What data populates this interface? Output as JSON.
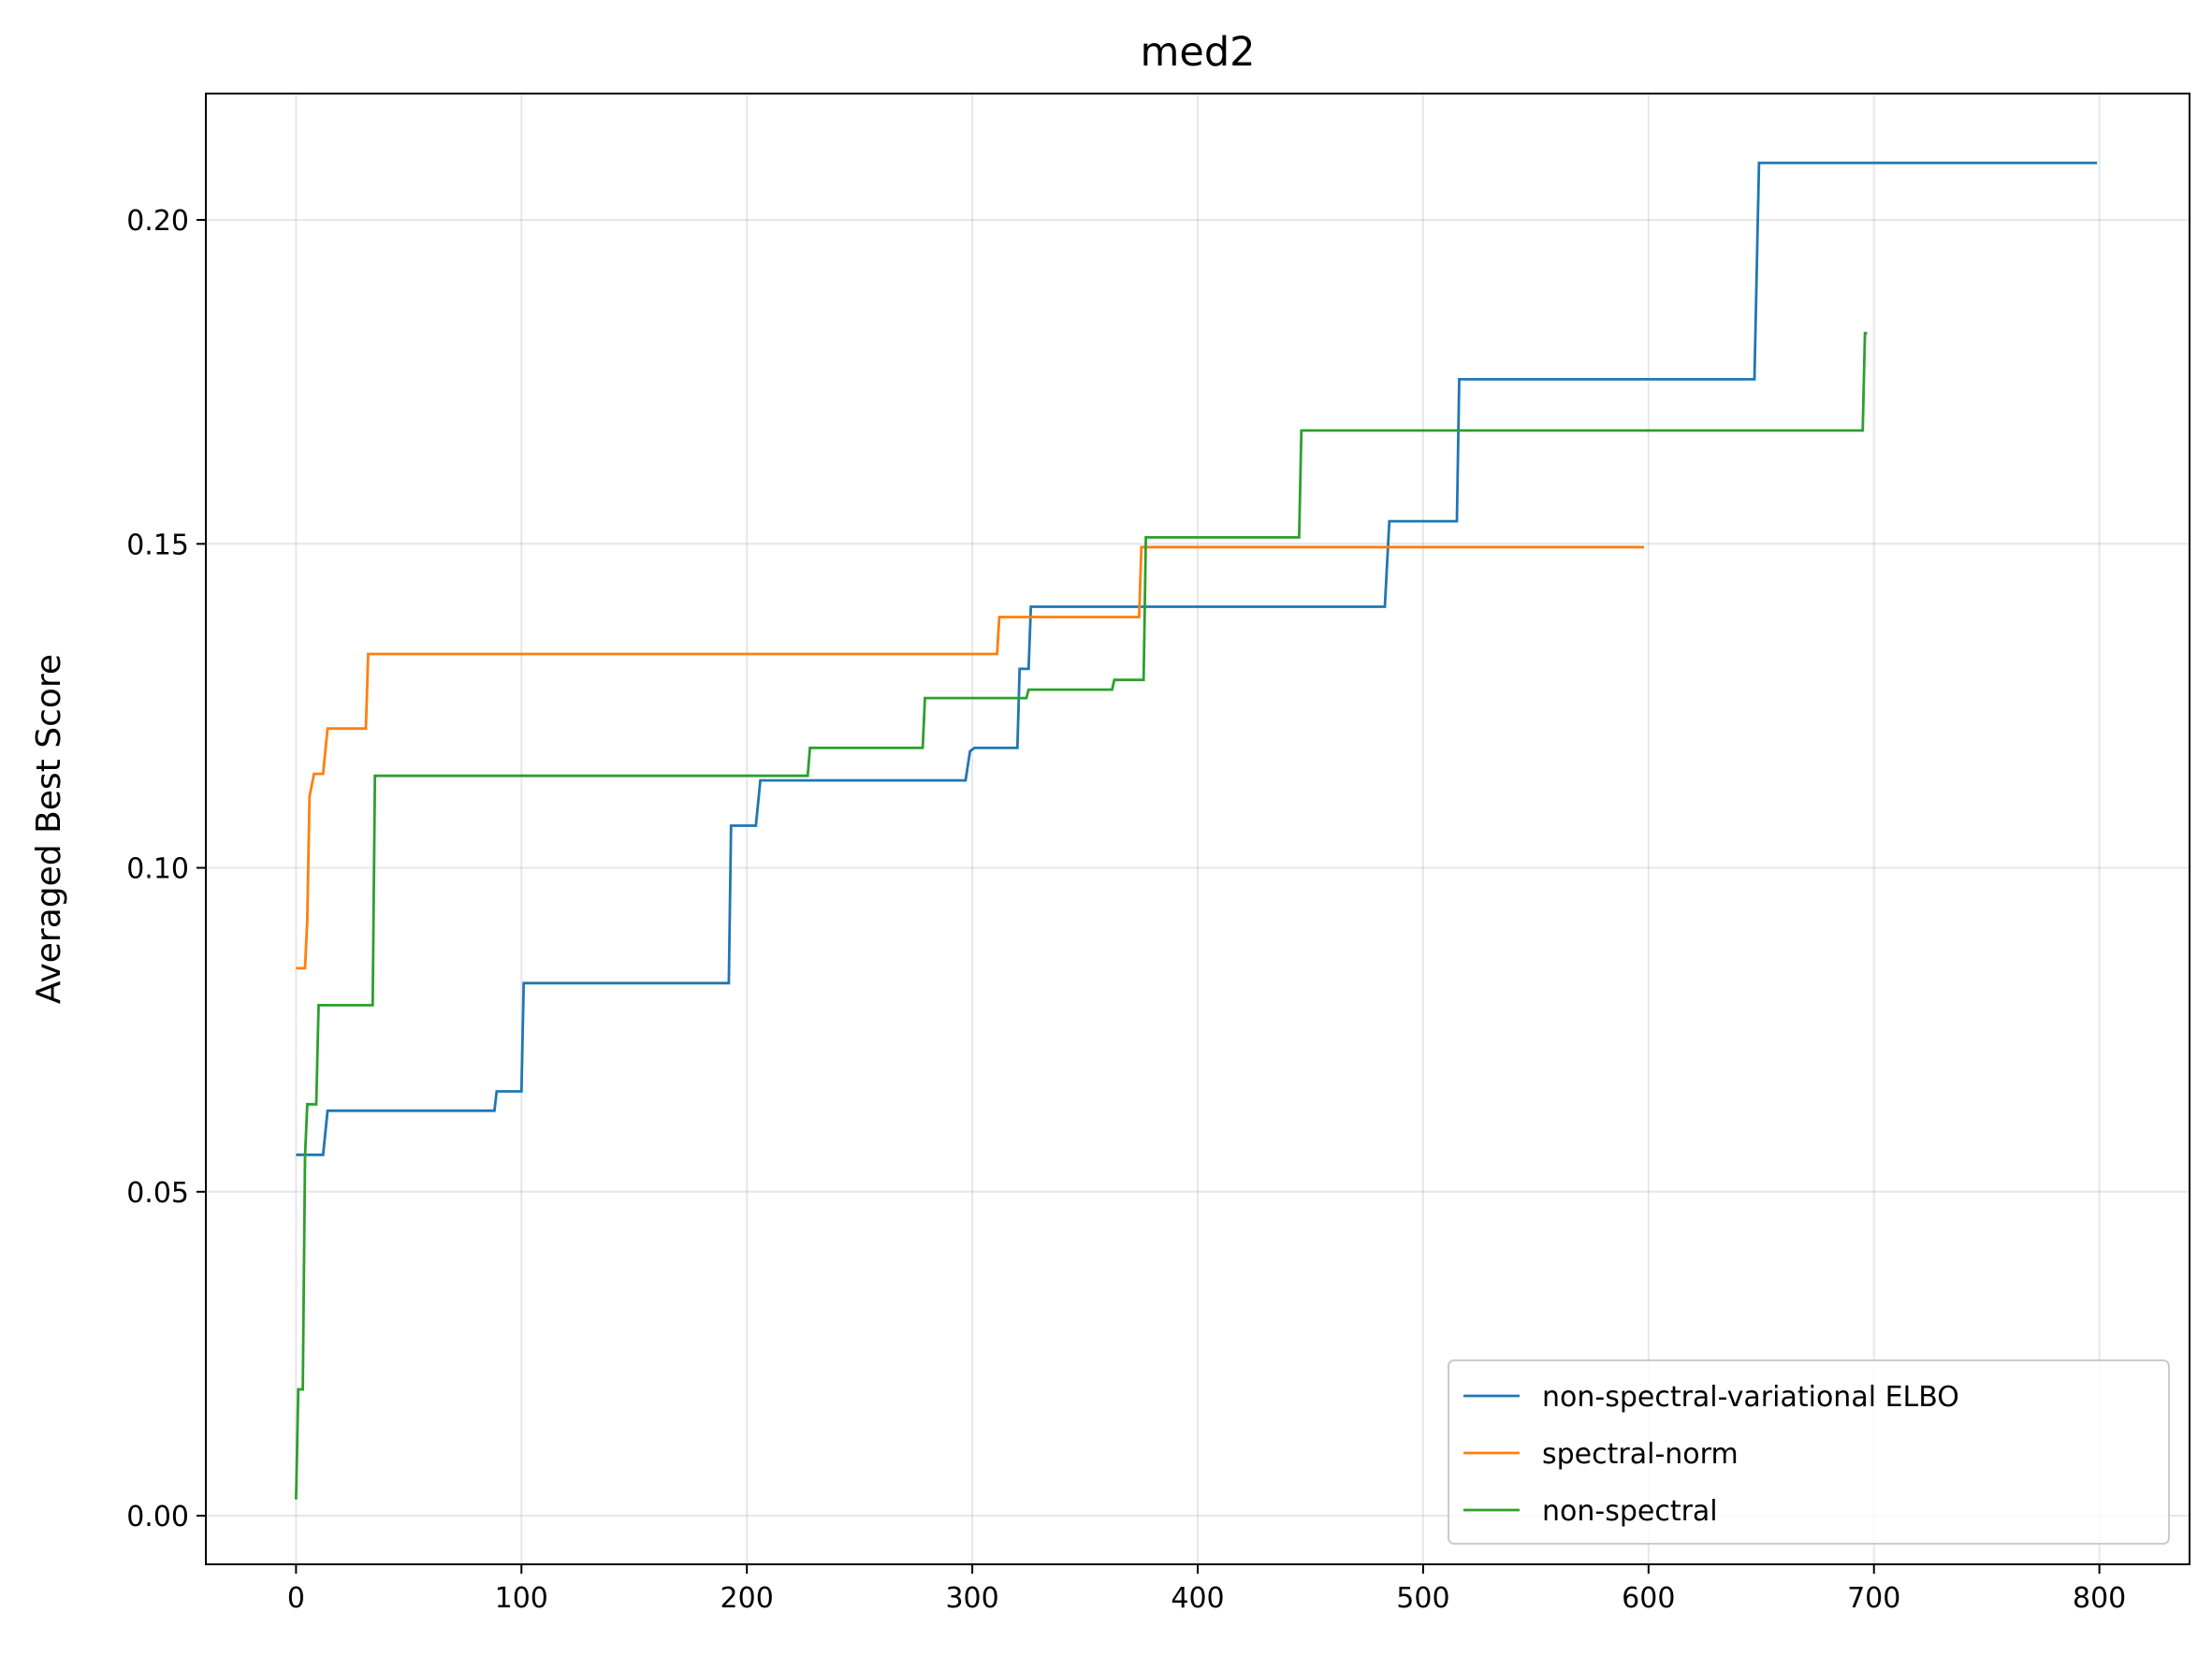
{
  "chart_data": {
    "type": "line",
    "title": "med2",
    "xlabel": "",
    "ylabel": "Averaged Best Score",
    "xlim": [
      -40,
      840
    ],
    "ylim": [
      -0.0075,
      0.2195
    ],
    "xticks": [
      0,
      100,
      200,
      300,
      400,
      500,
      600,
      700,
      800
    ],
    "xtick_labels": [
      "0",
      "100",
      "200",
      "300",
      "400",
      "500",
      "600",
      "700",
      "800"
    ],
    "yticks": [
      0.0,
      0.05,
      0.1,
      0.15,
      0.2
    ],
    "ytick_labels": [
      "0.00",
      "0.05",
      "0.10",
      "0.15",
      "0.20"
    ],
    "grid": true,
    "legend_position": "lower-right",
    "series": [
      {
        "name": "non-spectral-variational ELBO",
        "color": "#1f77b4",
        "x": [
          0,
          12,
          14,
          88,
          89,
          100,
          101,
          192,
          193,
          204,
          206,
          297,
          299,
          301,
          320,
          321,
          325,
          326,
          483,
          485,
          515,
          516,
          647,
          649,
          799
        ],
        "y": [
          0.0557,
          0.0557,
          0.0625,
          0.0625,
          0.0655,
          0.0655,
          0.0822,
          0.0822,
          0.1065,
          0.1065,
          0.1135,
          0.1135,
          0.118,
          0.1185,
          0.1185,
          0.1307,
          0.1307,
          0.1403,
          0.1403,
          0.1535,
          0.1535,
          0.1754,
          0.1754,
          0.2088,
          0.2088
        ]
      },
      {
        "name": "spectral-norm",
        "color": "#ff7f0e",
        "x": [
          0,
          4,
          5,
          6,
          8,
          12,
          14,
          31,
          32,
          311,
          312,
          374,
          375,
          598
        ],
        "y": [
          0.0845,
          0.0845,
          0.092,
          0.111,
          0.1145,
          0.1145,
          0.1215,
          0.1215,
          0.133,
          0.133,
          0.1387,
          0.1387,
          0.1495,
          0.1495
        ]
      },
      {
        "name": "non-spectral",
        "color": "#2ca02c",
        "x": [
          0,
          1,
          3,
          4,
          5,
          9,
          10,
          34,
          35,
          227,
          228,
          278,
          279,
          324,
          325,
          362,
          363,
          376,
          377,
          445,
          446,
          695,
          696,
          697
        ],
        "y": [
          0.0025,
          0.0195,
          0.0195,
          0.0555,
          0.0635,
          0.0635,
          0.0788,
          0.0788,
          0.1142,
          0.1142,
          0.1185,
          0.1185,
          0.1262,
          0.1262,
          0.1275,
          0.1275,
          0.129,
          0.129,
          0.151,
          0.151,
          0.1675,
          0.1675,
          0.1825,
          0.1825
        ]
      }
    ]
  }
}
